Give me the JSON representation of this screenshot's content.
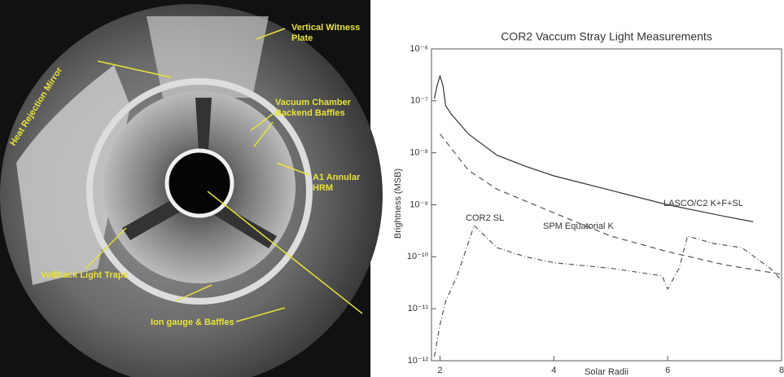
{
  "image_labels": [
    "Vertical Witness Plate",
    "Heat Rejection Mirror",
    "Vacuum Chamber Backend Baffles",
    "A1 Annular HRM",
    "VelBlack Light Traps",
    "Ion gauge & Baffles"
  ],
  "chart_data": {
    "type": "line",
    "title": "COR2 Vaccum Stray Light Measurements",
    "x_label": "Solar Radii",
    "y_label": "Brightness (MSB)",
    "log_y": true,
    "xlim": [
      1.85,
      8
    ],
    "xticks": [
      2,
      4,
      6,
      8
    ],
    "ylim": [
      1e-12,
      1e-06
    ],
    "yticks": [
      {
        "value": 1e-12,
        "label": "10⁻¹²"
      },
      {
        "value": 1e-11,
        "label": "10⁻¹¹"
      },
      {
        "value": 1e-10,
        "label": "10⁻¹⁰"
      },
      {
        "value": 1e-09,
        "label": "10⁻⁹"
      },
      {
        "value": 1e-08,
        "label": "10⁻⁸"
      },
      {
        "value": 1e-07,
        "label": "10⁻⁷"
      },
      {
        "value": 1e-06,
        "label": "10⁻⁶"
      }
    ],
    "series": [
      {
        "name": "LASCO/C2 K+F+SL",
        "color": "#333333",
        "dash": "none",
        "x": [
          1.9,
          1.95,
          2.0,
          2.05,
          2.1,
          2.2,
          2.5,
          3,
          3.5,
          4,
          5,
          6,
          7,
          7.5
        ],
        "values": [
          1.1e-07,
          2e-07,
          3e-07,
          2e-07,
          8e-08,
          5.5e-08,
          2.3e-08,
          9e-09,
          5.5e-09,
          3.6e-09,
          1.9e-09,
          1e-09,
          6e-10,
          4.7e-10
        ]
      },
      {
        "name": "SPM Equatorial  K",
        "color": "#555555",
        "dash": "7 5",
        "x": [
          2.0,
          2.5,
          3,
          4,
          5,
          6,
          7,
          8
        ],
        "values": [
          2.3e-08,
          4.6e-09,
          2e-09,
          7e-10,
          2.5e-10,
          1.25e-10,
          7e-11,
          4.6e-11
        ]
      },
      {
        "name": "COR2 SL",
        "color": "#555555",
        "dash": "6 3 1 3",
        "x": [
          1.9,
          2.0,
          2.1,
          2.3,
          2.6,
          3,
          3.5,
          4,
          5,
          5.9,
          6.0,
          6.2,
          6.35,
          6.8,
          7.3,
          7.8,
          8
        ],
        "values": [
          1.2e-12,
          5e-12,
          1.4e-11,
          4.3e-11,
          4e-10,
          1.5e-10,
          1e-10,
          7.7e-11,
          6e-11,
          4.3e-11,
          2.4e-11,
          6e-11,
          2.5e-10,
          1.8e-10,
          1.5e-10,
          6e-11,
          3.5e-11
        ]
      }
    ]
  }
}
